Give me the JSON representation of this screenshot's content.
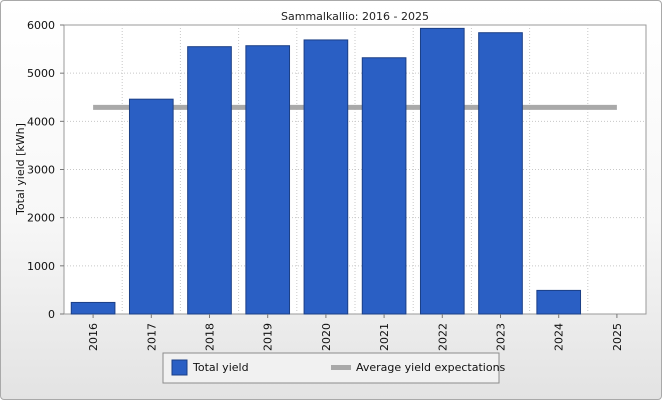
{
  "chart_data": {
    "type": "bar",
    "title": "Sammalkallio: 2016 - 2025",
    "xlabel": "",
    "ylabel": "Total yield [kWh]",
    "ylim": [
      0,
      6000
    ],
    "yticks": [
      0,
      1000,
      2000,
      3000,
      4000,
      5000,
      6000
    ],
    "categories": [
      "2016",
      "2017",
      "2018",
      "2019",
      "2020",
      "2021",
      "2022",
      "2023",
      "2024",
      "2025"
    ],
    "series": [
      {
        "name": "Total yield",
        "type": "bar",
        "color": "#2a5fc4",
        "values": [
          240,
          4460,
          5550,
          5570,
          5690,
          5320,
          5930,
          5840,
          490,
          0
        ]
      },
      {
        "name": "Average yield expectations",
        "type": "line",
        "color": "#a9a9a9",
        "values": [
          4290,
          4290,
          4290,
          4290,
          4290,
          4290,
          4290,
          4290,
          4290,
          4290
        ]
      }
    ],
    "grid": true,
    "legend_position": "bottom"
  }
}
